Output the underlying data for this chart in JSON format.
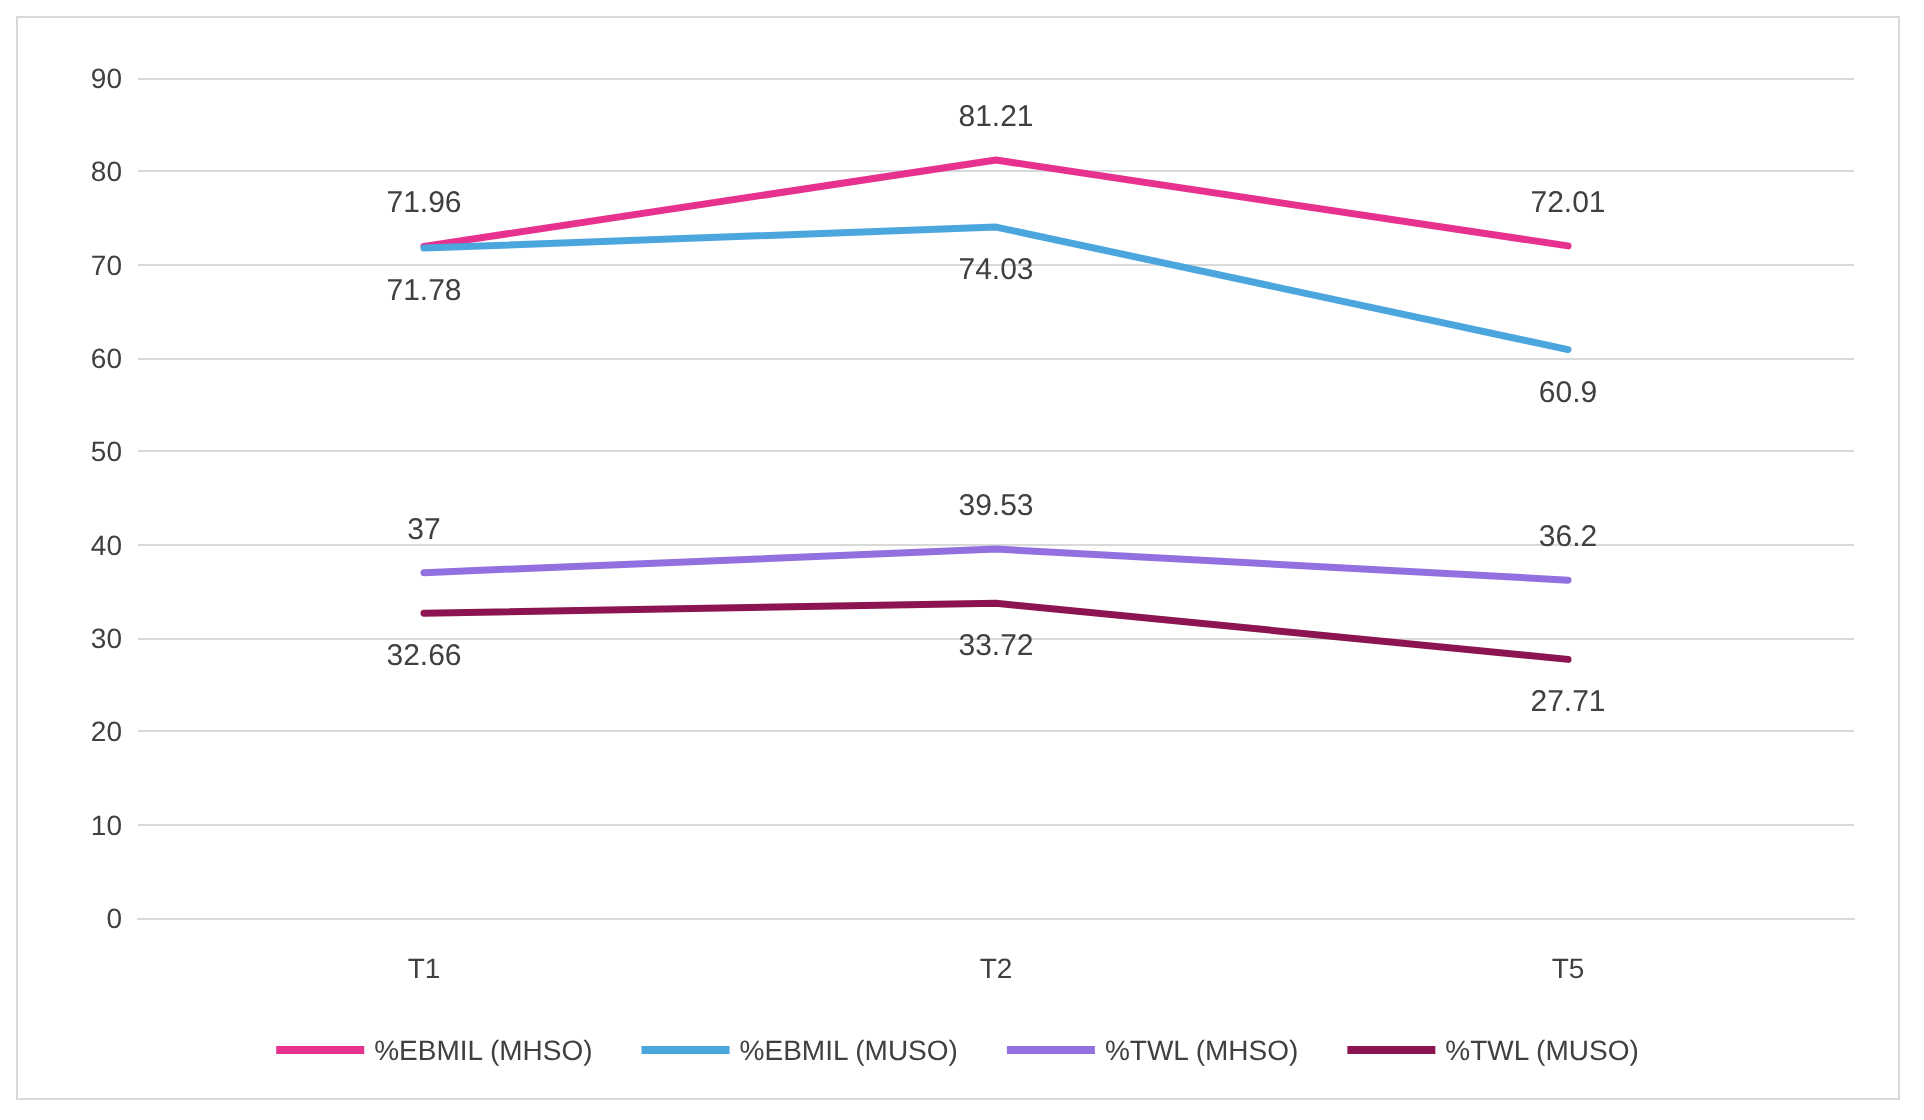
{
  "chart_data": {
    "type": "line",
    "categories": [
      "T1",
      "T2",
      "T5"
    ],
    "series": [
      {
        "name": "%EBMIL (MHSO)",
        "color": "#e6318e",
        "values": [
          71.96,
          81.21,
          72.01
        ]
      },
      {
        "name": "%EBMIL (MUSO)",
        "color": "#4ba6de",
        "values": [
          71.78,
          74.03,
          60.9
        ]
      },
      {
        "name": "%TWL (MHSO)",
        "color": "#9370e0",
        "values": [
          37,
          39.53,
          36.2
        ]
      },
      {
        "name": "%TWL (MUSO)",
        "color": "#8c1450",
        "values": [
          32.66,
          33.72,
          27.71
        ]
      }
    ],
    "ylim": [
      0,
      90
    ],
    "yticks": [
      0,
      10,
      20,
      30,
      40,
      50,
      60,
      70,
      80,
      90
    ],
    "grid": "y",
    "legend": "bottom",
    "data_labels": true,
    "marker": "none",
    "line_style": "solid"
  }
}
